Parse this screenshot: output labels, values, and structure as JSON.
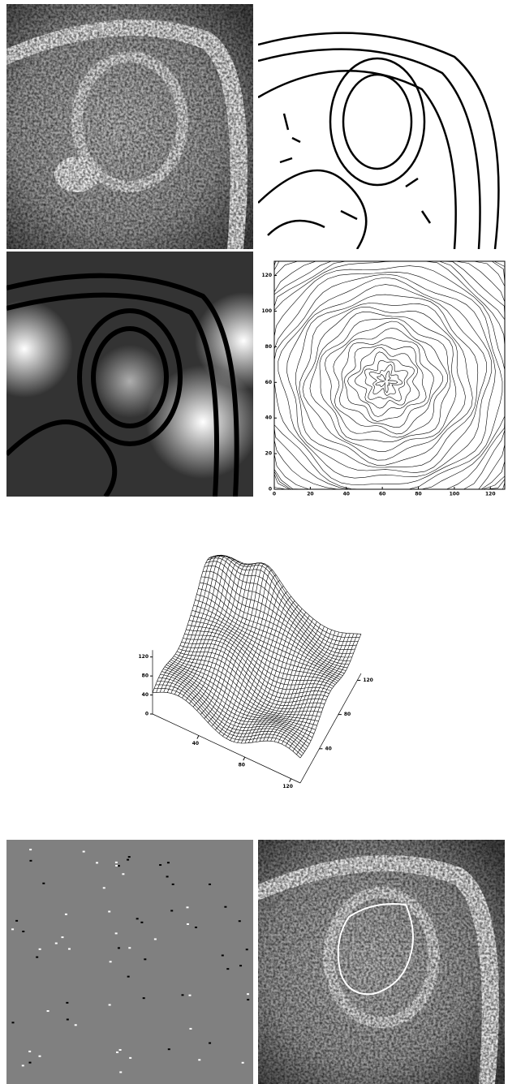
{
  "contour_plot": {
    "xlim": [
      0,
      128
    ],
    "ylim": [
      0,
      128
    ],
    "xticks": [
      0,
      20,
      40,
      60,
      80,
      100,
      120
    ],
    "yticks": [
      0,
      20,
      40,
      60,
      80,
      100,
      120
    ]
  },
  "surface_plot": {
    "xlim": [
      0,
      128
    ],
    "ylim": [
      0,
      128
    ],
    "zlim": [
      0,
      128
    ],
    "xticks": [
      40,
      80,
      120
    ],
    "yticks": [
      40,
      80,
      120
    ],
    "zticks": [
      0,
      40,
      80,
      120
    ]
  }
}
